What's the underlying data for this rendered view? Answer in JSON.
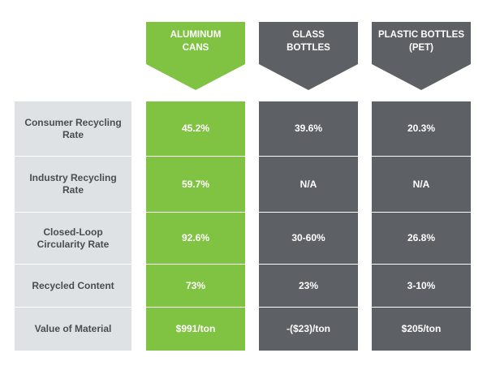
{
  "columns": [
    {
      "lines": [
        "ALUMINUM",
        "CANS"
      ]
    },
    {
      "lines": [
        "GLASS",
        "BOTTLES"
      ]
    },
    {
      "lines": [
        "PLASTIC BOTTLES",
        "(PET)"
      ]
    }
  ],
  "rows": [
    {
      "label": [
        "Consumer Recycling",
        "Rate"
      ],
      "values": [
        "45.2%",
        "39.6%",
        "20.3%"
      ]
    },
    {
      "label": [
        "Industry Recycling",
        "Rate"
      ],
      "values": [
        "59.7%",
        "N/A",
        "N/A"
      ]
    },
    {
      "label": [
        "Closed-Loop",
        "Circularity Rate"
      ],
      "values": [
        "92.6%",
        "30-60%",
        "26.8%"
      ]
    },
    {
      "label": [
        "Recycled Content"
      ],
      "values": [
        "73%",
        "23%",
        "3-10%"
      ]
    },
    {
      "label": [
        "Value of Material"
      ],
      "values": [
        "$991/ton",
        "-($23)/ton",
        "$205/ton"
      ]
    }
  ]
}
